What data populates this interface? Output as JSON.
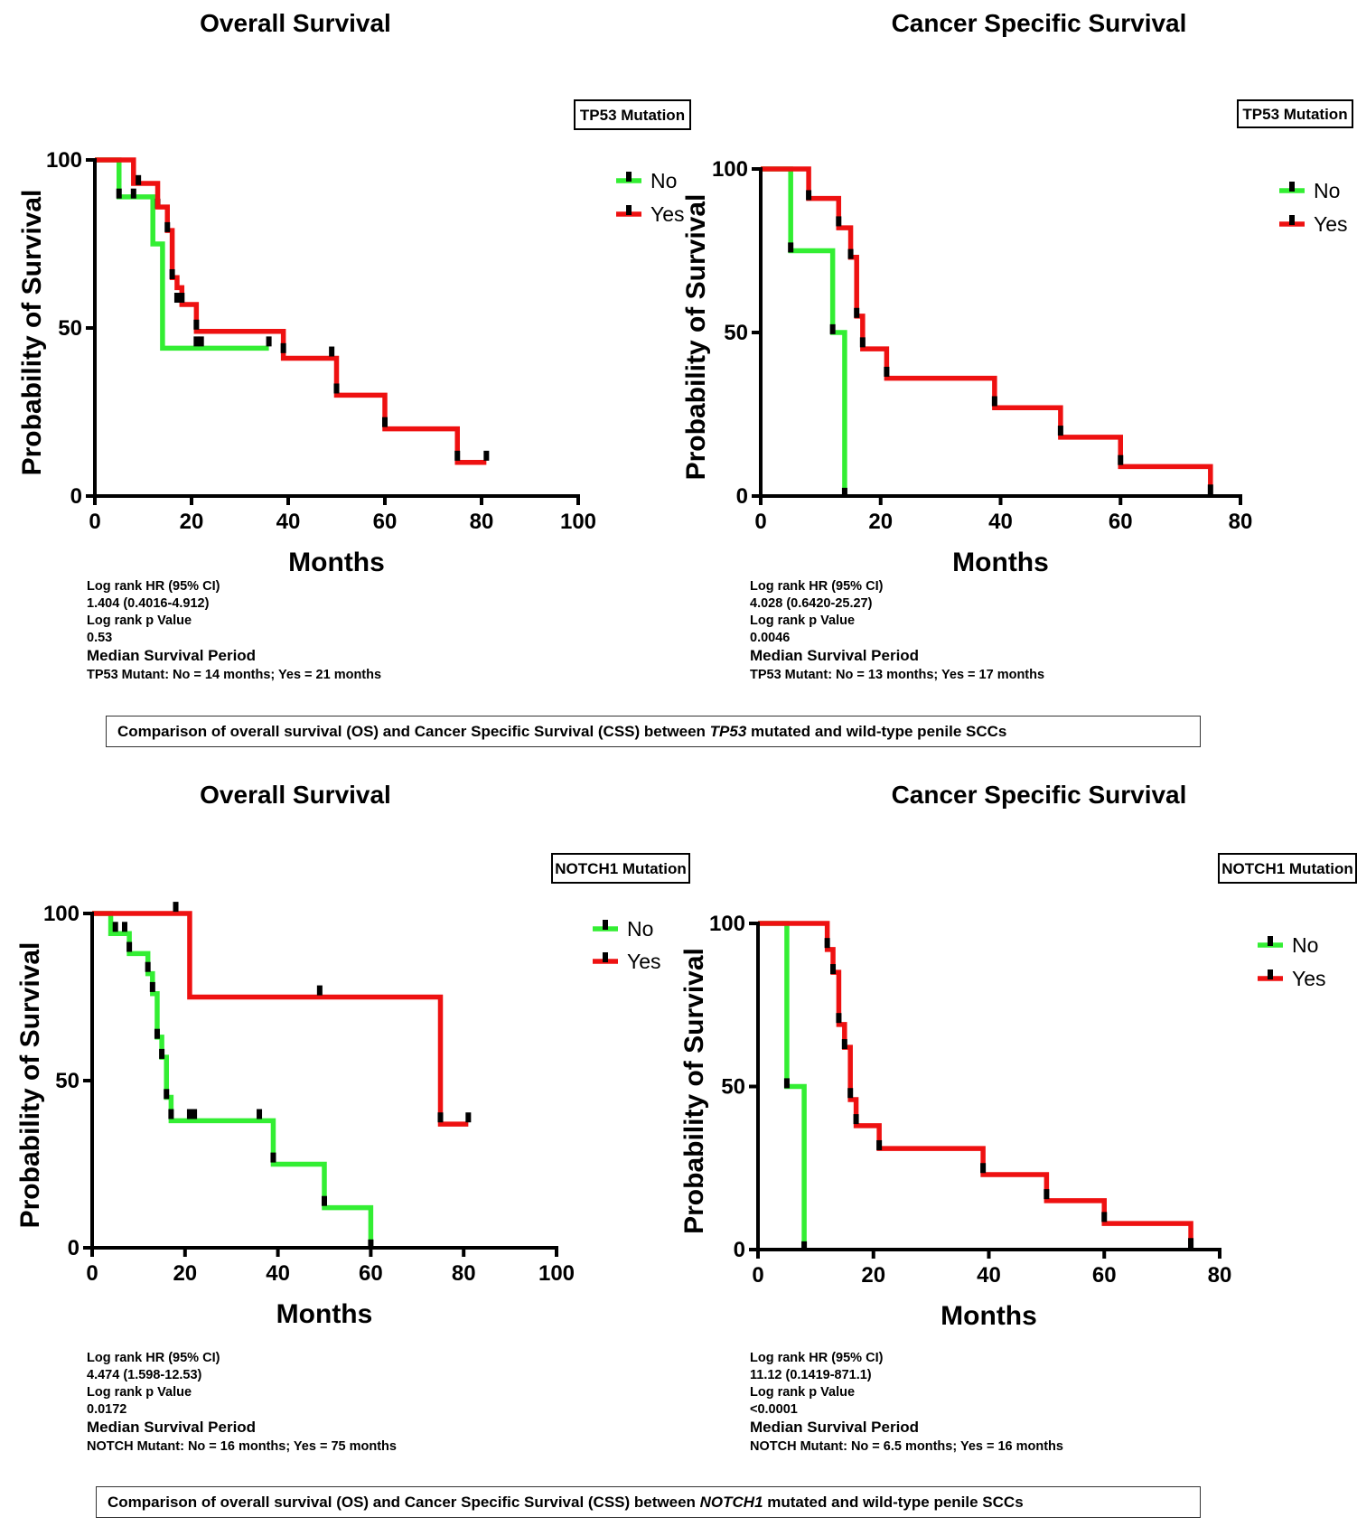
{
  "colors": {
    "no": "#33ee33",
    "yes": "#ee1111",
    "axis": "#000000"
  },
  "chart_data": [
    {
      "type": "line",
      "title": "Overall Survival",
      "xlabel": "Months",
      "ylabel": "Probability of Survival",
      "xlim": [
        0,
        100
      ],
      "ylim": [
        0,
        100
      ],
      "xticks": [
        "0",
        "20",
        "40",
        "60",
        "80",
        "100"
      ],
      "yticks": [
        "0",
        "50",
        "100"
      ],
      "legend_title": "TP53 Mutation",
      "legend_position": "top-right",
      "series": [
        {
          "name": "No",
          "color": "#33ee33",
          "steps": [
            [
              0,
              100
            ],
            [
              5,
              89
            ],
            [
              12,
              75
            ],
            [
              14,
              44
            ],
            [
              36,
              44
            ]
          ],
          "censors": [
            [
              5,
              90
            ],
            [
              8,
              90
            ],
            [
              13,
              87
            ],
            [
              21,
              46
            ],
            [
              22,
              46
            ],
            [
              36,
              46
            ]
          ]
        },
        {
          "name": "Yes",
          "color": "#ee1111",
          "steps": [
            [
              0,
              100
            ],
            [
              8,
              93
            ],
            [
              13,
              86
            ],
            [
              15,
              79
            ],
            [
              16,
              65
            ],
            [
              17,
              62
            ],
            [
              18,
              57
            ],
            [
              21,
              49
            ],
            [
              39,
              41
            ],
            [
              50,
              30
            ],
            [
              60,
              20
            ],
            [
              75,
              10
            ],
            [
              81,
              10
            ]
          ],
          "censors": [
            [
              9,
              94
            ],
            [
              15,
              80
            ],
            [
              16,
              66
            ],
            [
              17,
              59
            ],
            [
              18,
              59
            ],
            [
              21,
              51
            ],
            [
              39,
              44
            ],
            [
              49,
              43
            ],
            [
              50,
              32
            ],
            [
              60,
              22
            ],
            [
              75,
              12
            ],
            [
              81,
              12
            ]
          ]
        }
      ],
      "stats": {
        "hr_label": "Log rank HR (95% CI)",
        "hr_value": "1.404 (0.4016-4.912)",
        "p_label": "Log rank p Value",
        "p_value": "0.53",
        "median_label": "Median Survival Period",
        "median_value": "TP53 Mutant: No = 14 months; Yes = 21 months"
      }
    },
    {
      "type": "line",
      "title": "Cancer Specific Survival",
      "xlabel": "Months",
      "ylabel": "Probability of Survival",
      "xlim": [
        0,
        80
      ],
      "ylim": [
        0,
        100
      ],
      "xticks": [
        "0",
        "20",
        "40",
        "60",
        "80"
      ],
      "yticks": [
        "0",
        "50",
        "100"
      ],
      "legend_title": "TP53 Mutation",
      "legend_position": "top-right",
      "series": [
        {
          "name": "No",
          "color": "#33ee33",
          "steps": [
            [
              0,
              100
            ],
            [
              5,
              75
            ],
            [
              12,
              50
            ],
            [
              14,
              0
            ]
          ],
          "censors": [
            [
              5,
              76
            ],
            [
              12,
              51
            ],
            [
              14,
              1
            ]
          ]
        },
        {
          "name": "Yes",
          "color": "#ee1111",
          "steps": [
            [
              0,
              100
            ],
            [
              8,
              91
            ],
            [
              13,
              82
            ],
            [
              15,
              73
            ],
            [
              16,
              55
            ],
            [
              17,
              45
            ],
            [
              21,
              36
            ],
            [
              39,
              27
            ],
            [
              50,
              18
            ],
            [
              60,
              9
            ],
            [
              75,
              0
            ]
          ],
          "censors": [
            [
              8,
              92
            ],
            [
              13,
              84
            ],
            [
              15,
              74
            ],
            [
              16,
              56
            ],
            [
              17,
              47
            ],
            [
              21,
              38
            ],
            [
              39,
              29
            ],
            [
              50,
              20
            ],
            [
              60,
              11
            ],
            [
              75,
              2
            ]
          ]
        }
      ],
      "stats": {
        "hr_label": "Log rank HR (95% CI)",
        "hr_value": "4.028 (0.6420-25.27)",
        "p_label": "Log rank p Value",
        "p_value": "0.0046",
        "median_label": "Median Survival Period",
        "median_value": "TP53 Mutant: No = 13 months; Yes = 17 months"
      }
    },
    {
      "type": "line",
      "title": "Overall Survival",
      "xlabel": "Months",
      "ylabel": "Probability of Survival",
      "xlim": [
        0,
        100
      ],
      "ylim": [
        0,
        100
      ],
      "xticks": [
        "0",
        "20",
        "40",
        "60",
        "80",
        "100"
      ],
      "yticks": [
        "0",
        "50",
        "100"
      ],
      "legend_title": "NOTCH1 Mutation",
      "legend_position": "top-right",
      "series": [
        {
          "name": "No",
          "color": "#33ee33",
          "steps": [
            [
              0,
              100
            ],
            [
              4,
              94
            ],
            [
              8,
              88
            ],
            [
              12,
              82
            ],
            [
              13,
              76
            ],
            [
              14,
              63
            ],
            [
              15,
              57
            ],
            [
              16,
              45
            ],
            [
              17,
              38
            ],
            [
              39,
              25
            ],
            [
              50,
              12
            ],
            [
              60,
              0
            ]
          ],
          "censors": [
            [
              5,
              96
            ],
            [
              7,
              96
            ],
            [
              8,
              90
            ],
            [
              12,
              84
            ],
            [
              13,
              78
            ],
            [
              14,
              64
            ],
            [
              15,
              58
            ],
            [
              16,
              46
            ],
            [
              17,
              40
            ],
            [
              21,
              40
            ],
            [
              22,
              40
            ],
            [
              36,
              40
            ],
            [
              39,
              27
            ],
            [
              50,
              14
            ],
            [
              60,
              1
            ]
          ]
        },
        {
          "name": "Yes",
          "color": "#ee1111",
          "steps": [
            [
              0,
              100
            ],
            [
              21,
              75
            ],
            [
              75,
              37
            ],
            [
              81,
              37
            ]
          ],
          "censors": [
            [
              18,
              102
            ],
            [
              49,
              77
            ],
            [
              75,
              39
            ],
            [
              81,
              39
            ]
          ]
        }
      ],
      "stats": {
        "hr_label": "Log rank HR (95% CI)",
        "hr_value": "4.474 (1.598-12.53)",
        "p_label": "Log rank p Value",
        "p_value": "0.0172",
        "median_label": "Median Survival Period",
        "median_value": "NOTCH Mutant: No = 16 months; Yes = 75 months"
      }
    },
    {
      "type": "line",
      "title": "Cancer Specific Survival",
      "xlabel": "Months",
      "ylabel": "Probability of Survival",
      "xlim": [
        0,
        80
      ],
      "ylim": [
        0,
        100
      ],
      "xticks": [
        "0",
        "20",
        "40",
        "60",
        "80"
      ],
      "yticks": [
        "0",
        "50",
        "100"
      ],
      "legend_title": "NOTCH1 Mutation",
      "legend_position": "top-right",
      "series": [
        {
          "name": "No",
          "color": "#33ee33",
          "steps": [
            [
              0,
              100
            ],
            [
              5,
              50
            ],
            [
              8,
              0
            ]
          ],
          "censors": [
            [
              5,
              51
            ],
            [
              8,
              1
            ]
          ]
        },
        {
          "name": "Yes",
          "color": "#ee1111",
          "steps": [
            [
              0,
              100
            ],
            [
              12,
              92
            ],
            [
              13,
              85
            ],
            [
              14,
              69
            ],
            [
              15,
              62
            ],
            [
              16,
              46
            ],
            [
              17,
              38
            ],
            [
              21,
              31
            ],
            [
              39,
              23
            ],
            [
              50,
              15
            ],
            [
              60,
              8
            ],
            [
              75,
              0
            ]
          ],
          "censors": [
            [
              12,
              94
            ],
            [
              13,
              86
            ],
            [
              14,
              71
            ],
            [
              15,
              63
            ],
            [
              16,
              48
            ],
            [
              17,
              40
            ],
            [
              21,
              32
            ],
            [
              39,
              25
            ],
            [
              50,
              17
            ],
            [
              60,
              10
            ],
            [
              75,
              2
            ]
          ]
        }
      ],
      "stats": {
        "hr_label": "Log rank HR (95% CI)",
        "hr_value": "11.12 (0.1419-871.1)",
        "p_label": "Log rank p Value",
        "p_value": "<0.0001",
        "median_label": "Median Survival Period",
        "median_value": "NOTCH Mutant: No = 6.5 months; Yes = 16 months"
      }
    }
  ],
  "captions": [
    {
      "before": "Comparison of overall survival (OS) and Cancer Specific Survival (CSS) between ",
      "gene": "TP53",
      "after": " mutated and wild-type penile SCCs"
    },
    {
      "before": "Comparison of overall survival (OS) and Cancer Specific Survival (CSS) between ",
      "gene": "NOTCH1",
      "after": " mutated and wild-type penile SCCs"
    }
  ]
}
